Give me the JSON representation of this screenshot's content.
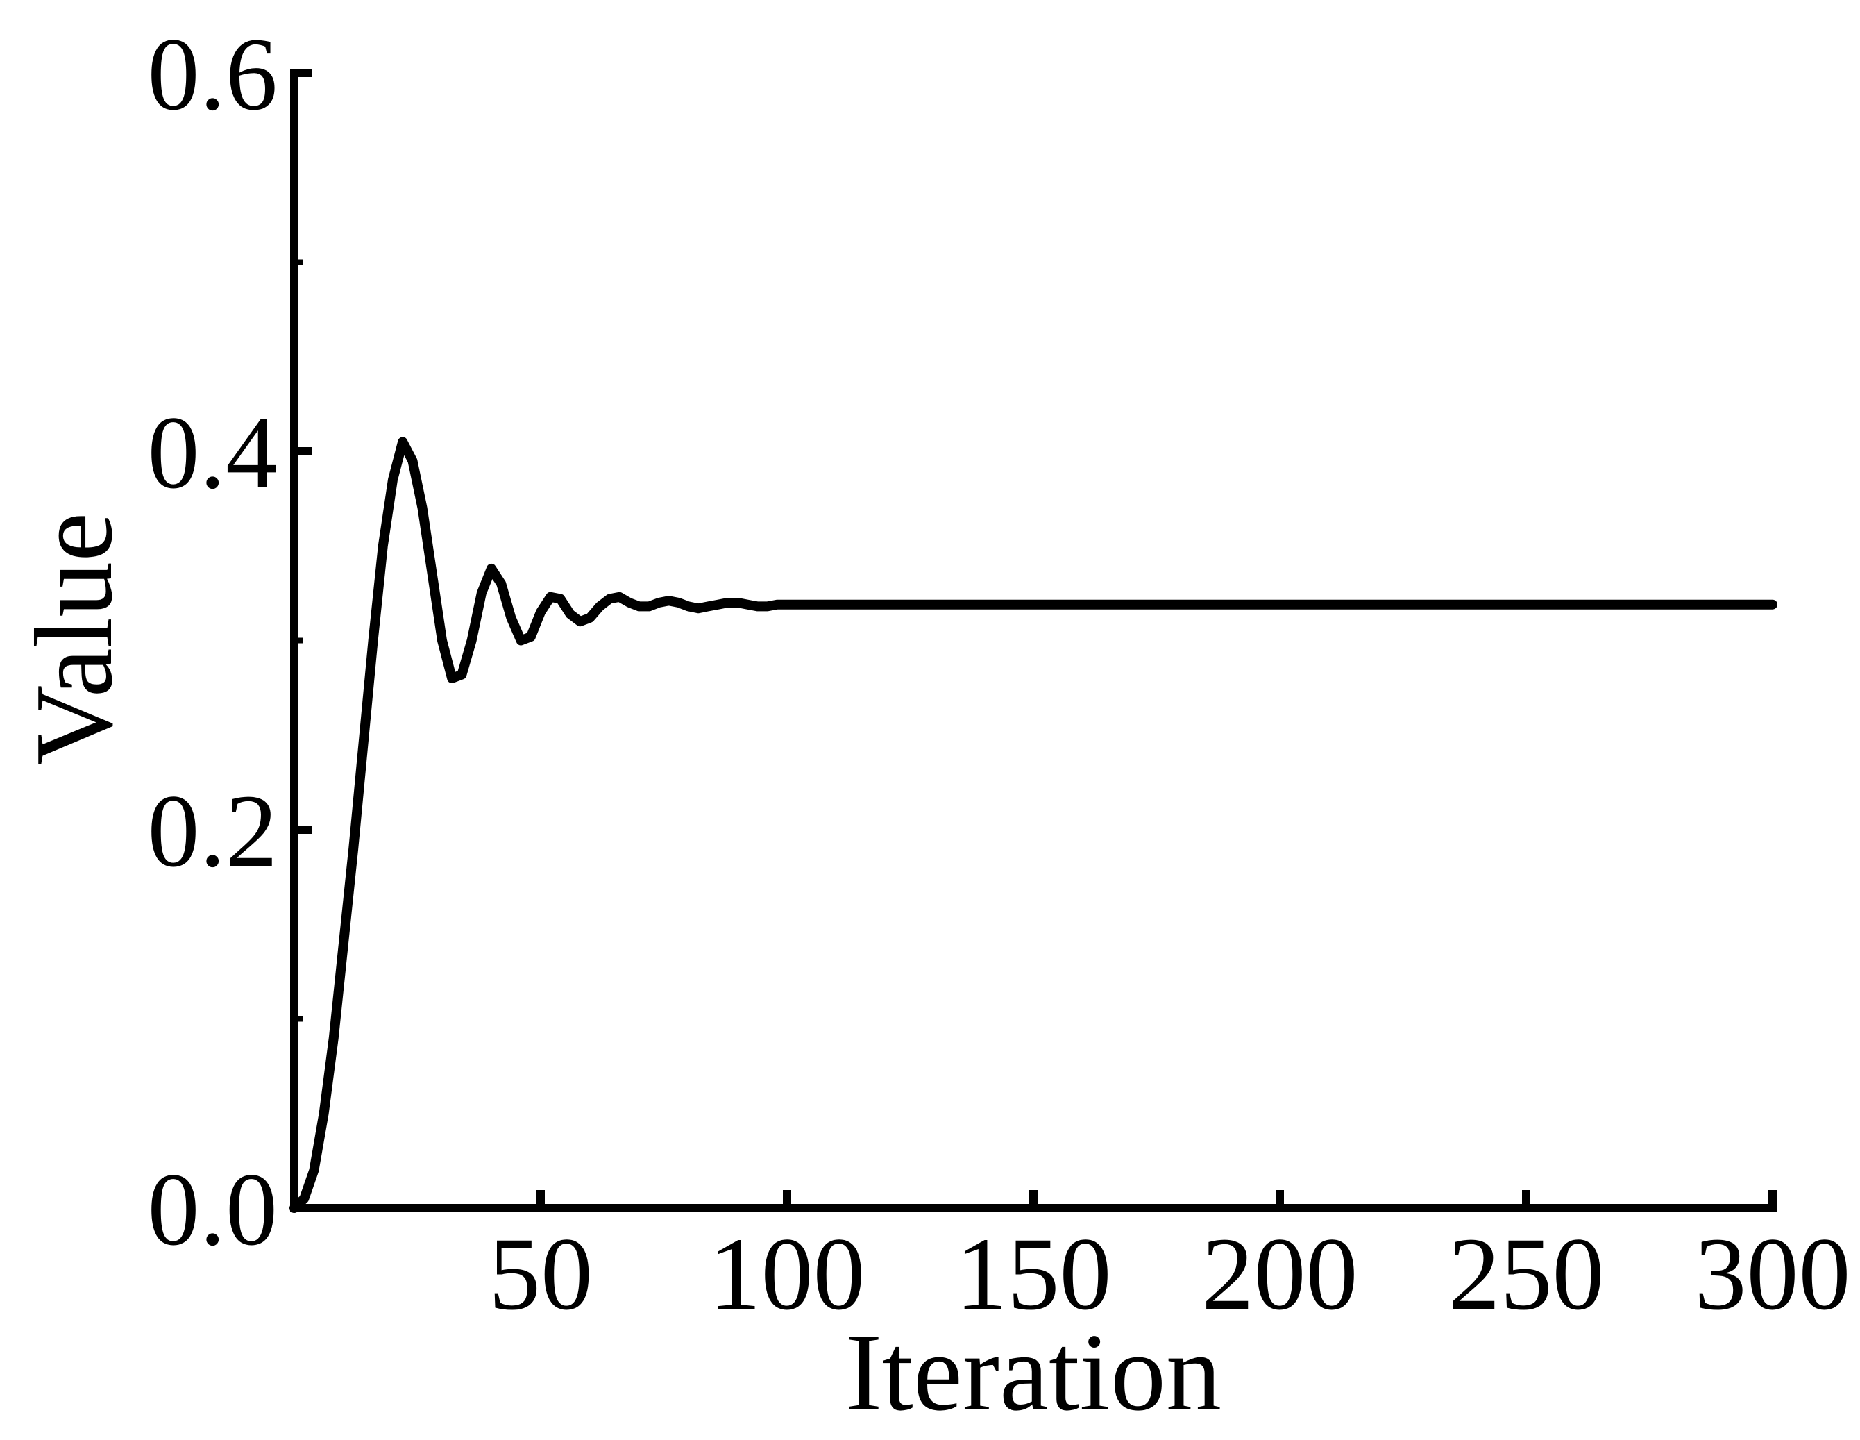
{
  "chart_data": {
    "type": "line",
    "title": "",
    "xlabel": "Iteration",
    "ylabel": "Value",
    "xlim": [
      0,
      300
    ],
    "ylim": [
      0,
      0.6
    ],
    "x_ticks": [
      50,
      100,
      150,
      200,
      250,
      300
    ],
    "x_tick_labels": [
      "50",
      "100",
      "150",
      "200",
      "250",
      "300"
    ],
    "y_ticks": [
      0,
      0.2,
      0.4,
      0.6
    ],
    "y_tick_labels": [
      "0.0",
      "0.2",
      "0.4",
      "0.6"
    ],
    "y_minor_ticks": [
      0.1,
      0.3,
      0.5
    ],
    "grid": false,
    "legend": "none",
    "series": [
      {
        "color": "#000000",
        "x": [
          0,
          2,
          4,
          6,
          8,
          10,
          12,
          14,
          16,
          18,
          20,
          22,
          24,
          26,
          28,
          30,
          32,
          34,
          36,
          38,
          40,
          42,
          44,
          46,
          48,
          50,
          52,
          54,
          56,
          58,
          60,
          62,
          64,
          66,
          68,
          70,
          72,
          74,
          76,
          78,
          80,
          82,
          84,
          86,
          88,
          90,
          92,
          94,
          96,
          98,
          100,
          105,
          110,
          115,
          120,
          125,
          130,
          135,
          140,
          150,
          175,
          200,
          225,
          250,
          275,
          300
        ],
        "y": [
          0.0,
          0.005,
          0.02,
          0.05,
          0.09,
          0.14,
          0.19,
          0.245,
          0.3,
          0.35,
          0.385,
          0.405,
          0.395,
          0.37,
          0.335,
          0.3,
          0.28,
          0.282,
          0.3,
          0.325,
          0.338,
          0.33,
          0.312,
          0.3,
          0.302,
          0.315,
          0.323,
          0.322,
          0.314,
          0.31,
          0.312,
          0.318,
          0.322,
          0.323,
          0.32,
          0.318,
          0.318,
          0.32,
          0.321,
          0.32,
          0.318,
          0.317,
          0.318,
          0.319,
          0.32,
          0.32,
          0.319,
          0.318,
          0.318,
          0.319,
          0.319,
          0.319,
          0.319,
          0.319,
          0.319,
          0.319,
          0.319,
          0.319,
          0.319,
          0.319,
          0.319,
          0.319,
          0.319,
          0.319,
          0.319,
          0.319
        ]
      }
    ]
  }
}
